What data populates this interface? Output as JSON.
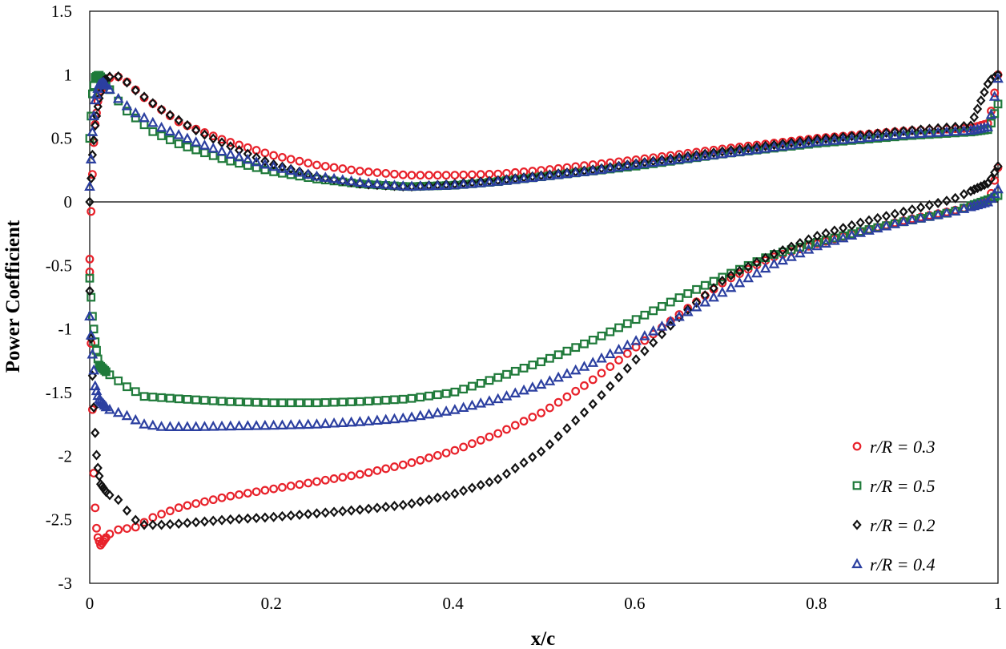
{
  "chart_data": {
    "type": "scatter",
    "title": "",
    "xlabel": "x/c",
    "ylabel": "Power Coefficient",
    "xlim": [
      0,
      1
    ],
    "ylim": [
      -3,
      1.5
    ],
    "x_ticks": [
      "0",
      "0.2",
      "0.4",
      "0.6",
      "0.8",
      "1"
    ],
    "y_ticks": [
      "1.5",
      "1",
      "0.5",
      "0",
      "-0.5",
      "-1",
      "-1.5",
      "-2",
      "-2.5",
      "-3"
    ],
    "grid": false,
    "legend_position": "bottom-right",
    "series": [
      {
        "name": "r/R = 0.3",
        "color": "#e8212a",
        "marker": "circle",
        "upper": [
          [
            0.0,
            -0.45
          ],
          [
            0.002,
            0.05
          ],
          [
            0.005,
            0.55
          ],
          [
            0.01,
            0.85
          ],
          [
            0.02,
            0.97
          ],
          [
            0.03,
            0.99
          ],
          [
            0.04,
            0.95
          ],
          [
            0.06,
            0.82
          ],
          [
            0.1,
            0.62
          ],
          [
            0.15,
            0.48
          ],
          [
            0.2,
            0.37
          ],
          [
            0.25,
            0.29
          ],
          [
            0.3,
            0.24
          ],
          [
            0.35,
            0.21
          ],
          [
            0.4,
            0.21
          ],
          [
            0.45,
            0.22
          ],
          [
            0.5,
            0.25
          ],
          [
            0.55,
            0.29
          ],
          [
            0.6,
            0.33
          ],
          [
            0.7,
            0.42
          ],
          [
            0.8,
            0.5
          ],
          [
            0.9,
            0.56
          ],
          [
            0.97,
            0.58
          ],
          [
            0.99,
            0.62
          ],
          [
            1.0,
            1.0
          ]
        ],
        "lower": [
          [
            0.0,
            -0.55
          ],
          [
            0.002,
            -1.3
          ],
          [
            0.005,
            -2.3
          ],
          [
            0.008,
            -2.62
          ],
          [
            0.012,
            -2.7
          ],
          [
            0.02,
            -2.62
          ],
          [
            0.03,
            -2.58
          ],
          [
            0.05,
            -2.56
          ],
          [
            0.07,
            -2.48
          ],
          [
            0.1,
            -2.4
          ],
          [
            0.15,
            -2.32
          ],
          [
            0.2,
            -2.26
          ],
          [
            0.25,
            -2.2
          ],
          [
            0.3,
            -2.14
          ],
          [
            0.35,
            -2.06
          ],
          [
            0.4,
            -1.96
          ],
          [
            0.45,
            -1.82
          ],
          [
            0.5,
            -1.65
          ],
          [
            0.55,
            -1.42
          ],
          [
            0.6,
            -1.15
          ],
          [
            0.65,
            -0.88
          ],
          [
            0.7,
            -0.62
          ],
          [
            0.75,
            -0.44
          ],
          [
            0.8,
            -0.33
          ],
          [
            0.85,
            -0.23
          ],
          [
            0.9,
            -0.14
          ],
          [
            0.95,
            -0.07
          ],
          [
            0.99,
            0.0
          ],
          [
            1.0,
            0.27
          ]
        ]
      },
      {
        "name": "r/R = 0.5",
        "color": "#1f7a3a",
        "marker": "square",
        "upper": [
          [
            0.0,
            0.5
          ],
          [
            0.003,
            0.85
          ],
          [
            0.006,
            0.98
          ],
          [
            0.01,
            1.0
          ],
          [
            0.015,
            0.96
          ],
          [
            0.025,
            0.85
          ],
          [
            0.04,
            0.72
          ],
          [
            0.07,
            0.55
          ],
          [
            0.1,
            0.45
          ],
          [
            0.15,
            0.33
          ],
          [
            0.2,
            0.24
          ],
          [
            0.25,
            0.18
          ],
          [
            0.3,
            0.14
          ],
          [
            0.35,
            0.12
          ],
          [
            0.4,
            0.13
          ],
          [
            0.45,
            0.16
          ],
          [
            0.5,
            0.2
          ],
          [
            0.55,
            0.24
          ],
          [
            0.6,
            0.28
          ],
          [
            0.7,
            0.38
          ],
          [
            0.8,
            0.46
          ],
          [
            0.9,
            0.52
          ],
          [
            0.97,
            0.55
          ],
          [
            0.99,
            0.57
          ],
          [
            1.0,
            0.77
          ]
        ],
        "lower": [
          [
            0.0,
            -0.6
          ],
          [
            0.003,
            -0.9
          ],
          [
            0.006,
            -1.1
          ],
          [
            0.01,
            -1.28
          ],
          [
            0.02,
            -1.35
          ],
          [
            0.04,
            -1.45
          ],
          [
            0.06,
            -1.53
          ],
          [
            0.1,
            -1.55
          ],
          [
            0.15,
            -1.57
          ],
          [
            0.2,
            -1.58
          ],
          [
            0.25,
            -1.58
          ],
          [
            0.3,
            -1.57
          ],
          [
            0.35,
            -1.55
          ],
          [
            0.4,
            -1.5
          ],
          [
            0.45,
            -1.38
          ],
          [
            0.5,
            -1.25
          ],
          [
            0.55,
            -1.1
          ],
          [
            0.6,
            -0.93
          ],
          [
            0.65,
            -0.75
          ],
          [
            0.7,
            -0.58
          ],
          [
            0.75,
            -0.42
          ],
          [
            0.8,
            -0.32
          ],
          [
            0.85,
            -0.23
          ],
          [
            0.9,
            -0.15
          ],
          [
            0.95,
            -0.08
          ],
          [
            0.99,
            0.02
          ],
          [
            1.0,
            0.05
          ]
        ]
      },
      {
        "name": "r/R = 0.2",
        "color": "#111111",
        "marker": "diamond",
        "upper": [
          [
            0.0,
            0.0
          ],
          [
            0.003,
            0.37
          ],
          [
            0.006,
            0.6
          ],
          [
            0.01,
            0.8
          ],
          [
            0.015,
            0.95
          ],
          [
            0.025,
            1.0
          ],
          [
            0.035,
            0.98
          ],
          [
            0.05,
            0.88
          ],
          [
            0.08,
            0.72
          ],
          [
            0.12,
            0.55
          ],
          [
            0.16,
            0.42
          ],
          [
            0.2,
            0.3
          ],
          [
            0.25,
            0.2
          ],
          [
            0.3,
            0.14
          ],
          [
            0.35,
            0.12
          ],
          [
            0.4,
            0.14
          ],
          [
            0.45,
            0.17
          ],
          [
            0.5,
            0.21
          ],
          [
            0.55,
            0.25
          ],
          [
            0.6,
            0.3
          ],
          [
            0.7,
            0.4
          ],
          [
            0.8,
            0.49
          ],
          [
            0.9,
            0.56
          ],
          [
            0.97,
            0.6
          ],
          [
            0.99,
            0.95
          ],
          [
            1.0,
            1.0
          ]
        ],
        "lower": [
          [
            0.0,
            -0.7
          ],
          [
            0.002,
            -1.2
          ],
          [
            0.005,
            -1.7
          ],
          [
            0.008,
            -2.05
          ],
          [
            0.012,
            -2.22
          ],
          [
            0.02,
            -2.3
          ],
          [
            0.03,
            -2.33
          ],
          [
            0.04,
            -2.42
          ],
          [
            0.05,
            -2.5
          ],
          [
            0.06,
            -2.54
          ],
          [
            0.08,
            -2.54
          ],
          [
            0.1,
            -2.53
          ],
          [
            0.15,
            -2.5
          ],
          [
            0.2,
            -2.48
          ],
          [
            0.25,
            -2.45
          ],
          [
            0.3,
            -2.42
          ],
          [
            0.35,
            -2.38
          ],
          [
            0.4,
            -2.3
          ],
          [
            0.45,
            -2.18
          ],
          [
            0.5,
            -1.95
          ],
          [
            0.55,
            -1.62
          ],
          [
            0.6,
            -1.25
          ],
          [
            0.65,
            -0.9
          ],
          [
            0.7,
            -0.6
          ],
          [
            0.75,
            -0.42
          ],
          [
            0.8,
            -0.27
          ],
          [
            0.85,
            -0.16
          ],
          [
            0.9,
            -0.07
          ],
          [
            0.95,
            0.02
          ],
          [
            0.99,
            0.15
          ],
          [
            1.0,
            0.28
          ]
        ]
      },
      {
        "name": "r/R = 0.4",
        "color": "#2b3fa0",
        "marker": "triangle",
        "upper": [
          [
            0.0,
            0.12
          ],
          [
            0.003,
            0.55
          ],
          [
            0.006,
            0.8
          ],
          [
            0.01,
            0.92
          ],
          [
            0.015,
            0.94
          ],
          [
            0.02,
            0.9
          ],
          [
            0.03,
            0.82
          ],
          [
            0.05,
            0.7
          ],
          [
            0.08,
            0.58
          ],
          [
            0.12,
            0.46
          ],
          [
            0.16,
            0.36
          ],
          [
            0.2,
            0.28
          ],
          [
            0.25,
            0.2
          ],
          [
            0.3,
            0.15
          ],
          [
            0.35,
            0.12
          ],
          [
            0.4,
            0.13
          ],
          [
            0.45,
            0.16
          ],
          [
            0.5,
            0.2
          ],
          [
            0.55,
            0.24
          ],
          [
            0.6,
            0.29
          ],
          [
            0.7,
            0.38
          ],
          [
            0.8,
            0.47
          ],
          [
            0.9,
            0.53
          ],
          [
            0.97,
            0.56
          ],
          [
            0.99,
            0.59
          ],
          [
            1.0,
            0.97
          ]
        ],
        "lower": [
          [
            0.0,
            -0.9
          ],
          [
            0.003,
            -1.2
          ],
          [
            0.006,
            -1.45
          ],
          [
            0.01,
            -1.55
          ],
          [
            0.02,
            -1.63
          ],
          [
            0.04,
            -1.68
          ],
          [
            0.06,
            -1.75
          ],
          [
            0.08,
            -1.77
          ],
          [
            0.12,
            -1.77
          ],
          [
            0.2,
            -1.76
          ],
          [
            0.25,
            -1.75
          ],
          [
            0.3,
            -1.73
          ],
          [
            0.35,
            -1.7
          ],
          [
            0.4,
            -1.64
          ],
          [
            0.45,
            -1.55
          ],
          [
            0.5,
            -1.43
          ],
          [
            0.55,
            -1.28
          ],
          [
            0.6,
            -1.1
          ],
          [
            0.65,
            -0.9
          ],
          [
            0.7,
            -0.7
          ],
          [
            0.75,
            -0.5
          ],
          [
            0.8,
            -0.35
          ],
          [
            0.85,
            -0.24
          ],
          [
            0.9,
            -0.15
          ],
          [
            0.95,
            -0.08
          ],
          [
            0.99,
            0.0
          ],
          [
            1.0,
            0.1
          ]
        ]
      }
    ]
  }
}
